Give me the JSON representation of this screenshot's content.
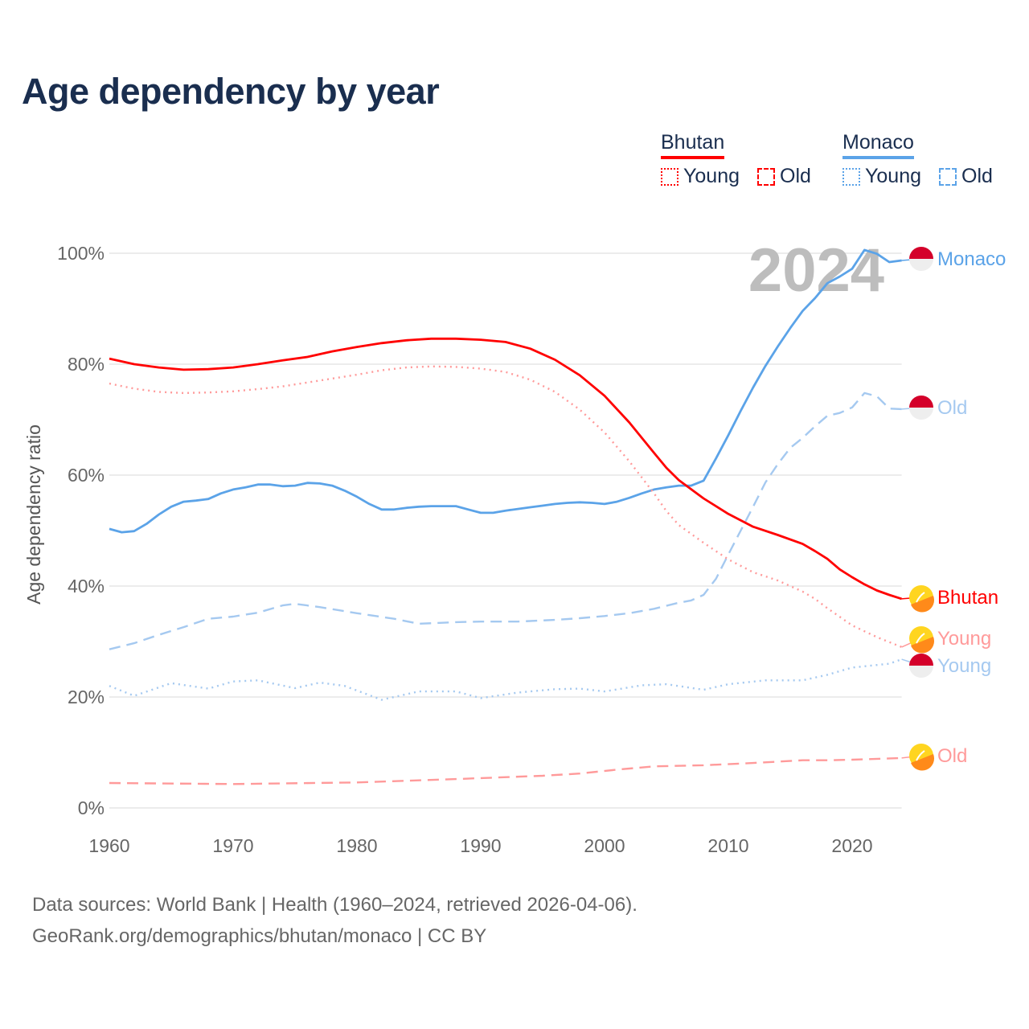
{
  "title": "Age dependency by year",
  "legend": {
    "countries": [
      {
        "name": "Bhutan",
        "color": "#ff0000",
        "light": "#ff9a9a",
        "young": "Young",
        "old": "Old"
      },
      {
        "name": "Monaco",
        "color": "#5ba3e8",
        "light": "#a5c9f0",
        "young": "Young",
        "old": "Old"
      }
    ]
  },
  "year_watermark": "2024",
  "footer": {
    "line1": "Data sources: World Bank | Health (1960–2024, retrieved 2026-04-06).",
    "line2": "GeoRank.org/demographics/bhutan/monaco | CC BY"
  },
  "chart_data": {
    "type": "line",
    "title": "Age dependency by year",
    "xlabel": "",
    "ylabel": "Age dependency ratio",
    "xlim": [
      1960,
      2024
    ],
    "ylim": [
      0,
      100
    ],
    "xticks": [
      "1960",
      "1970",
      "1980",
      "1990",
      "2000",
      "2010",
      "2020"
    ],
    "yticks": [
      "0%",
      "20%",
      "40%",
      "60%",
      "80%",
      "100%"
    ],
    "grid": true,
    "series": [
      {
        "name": "Monaco",
        "country": "Monaco",
        "kind": "total",
        "end_label": "Monaco",
        "points": [
          [
            1960,
            50.3
          ],
          [
            1961,
            49.7
          ],
          [
            1962,
            49.9
          ],
          [
            1963,
            51.2
          ],
          [
            1964,
            52.9
          ],
          [
            1965,
            54.3
          ],
          [
            1966,
            55.2
          ],
          [
            1967,
            55.4
          ],
          [
            1968,
            55.7
          ],
          [
            1969,
            56.7
          ],
          [
            1970,
            57.4
          ],
          [
            1971,
            57.8
          ],
          [
            1972,
            58.3
          ],
          [
            1973,
            58.3
          ],
          [
            1974,
            58.0
          ],
          [
            1975,
            58.1
          ],
          [
            1976,
            58.6
          ],
          [
            1977,
            58.5
          ],
          [
            1978,
            58.1
          ],
          [
            1979,
            57.2
          ],
          [
            1980,
            56.1
          ],
          [
            1981,
            54.8
          ],
          [
            1982,
            53.8
          ],
          [
            1983,
            53.8
          ],
          [
            1984,
            54.1
          ],
          [
            1985,
            54.3
          ],
          [
            1986,
            54.4
          ],
          [
            1987,
            54.4
          ],
          [
            1988,
            54.4
          ],
          [
            1989,
            53.8
          ],
          [
            1990,
            53.2
          ],
          [
            1991,
            53.2
          ],
          [
            1992,
            53.6
          ],
          [
            1993,
            53.9
          ],
          [
            1994,
            54.2
          ],
          [
            1995,
            54.5
          ],
          [
            1996,
            54.8
          ],
          [
            1997,
            55.0
          ],
          [
            1998,
            55.1
          ],
          [
            1999,
            55.0
          ],
          [
            2000,
            54.8
          ],
          [
            2001,
            55.2
          ],
          [
            2002,
            55.9
          ],
          [
            2003,
            56.7
          ],
          [
            2004,
            57.4
          ],
          [
            2005,
            57.8
          ],
          [
            2006,
            58.1
          ],
          [
            2007,
            58.1
          ],
          [
            2008,
            59.0
          ],
          [
            2009,
            63.0
          ],
          [
            2010,
            67.2
          ],
          [
            2011,
            71.6
          ],
          [
            2012,
            75.8
          ],
          [
            2013,
            79.7
          ],
          [
            2014,
            83.2
          ],
          [
            2015,
            86.5
          ],
          [
            2016,
            89.6
          ],
          [
            2017,
            91.9
          ],
          [
            2018,
            94.6
          ],
          [
            2019,
            95.8
          ],
          [
            2020,
            97.2
          ],
          [
            2021,
            100.6
          ],
          [
            2022,
            99.9
          ],
          [
            2023,
            98.4
          ],
          [
            2024,
            98.7
          ]
        ]
      },
      {
        "name": "Monaco Old",
        "country": "Monaco",
        "kind": "old",
        "end_label": "Old",
        "points": [
          [
            1960,
            28.6
          ],
          [
            1962,
            29.7
          ],
          [
            1964,
            31.2
          ],
          [
            1966,
            32.6
          ],
          [
            1968,
            34.1
          ],
          [
            1970,
            34.5
          ],
          [
            1972,
            35.2
          ],
          [
            1974,
            36.5
          ],
          [
            1975,
            36.8
          ],
          [
            1977,
            36.2
          ],
          [
            1980,
            35.1
          ],
          [
            1983,
            34.1
          ],
          [
            1985,
            33.2
          ],
          [
            1988,
            33.5
          ],
          [
            1990,
            33.6
          ],
          [
            1993,
            33.6
          ],
          [
            1996,
            33.9
          ],
          [
            1998,
            34.2
          ],
          [
            2000,
            34.6
          ],
          [
            2002,
            35.1
          ],
          [
            2004,
            35.9
          ],
          [
            2006,
            37.0
          ],
          [
            2007,
            37.4
          ],
          [
            2008,
            38.4
          ],
          [
            2009,
            41.3
          ],
          [
            2010,
            45.7
          ],
          [
            2011,
            50.0
          ],
          [
            2012,
            54.3
          ],
          [
            2013,
            58.7
          ],
          [
            2014,
            62.0
          ],
          [
            2015,
            64.9
          ],
          [
            2016,
            66.7
          ],
          [
            2017,
            68.8
          ],
          [
            2018,
            70.7
          ],
          [
            2019,
            71.2
          ],
          [
            2020,
            72.2
          ],
          [
            2021,
            74.8
          ],
          [
            2022,
            74.2
          ],
          [
            2023,
            72.0
          ],
          [
            2024,
            71.9
          ]
        ]
      },
      {
        "name": "Monaco Young",
        "country": "Monaco",
        "kind": "young",
        "end_label": "Young",
        "points": [
          [
            1960,
            22.0
          ],
          [
            1962,
            20.2
          ],
          [
            1965,
            22.5
          ],
          [
            1968,
            21.5
          ],
          [
            1970,
            22.8
          ],
          [
            1972,
            23.0
          ],
          [
            1975,
            21.6
          ],
          [
            1977,
            22.6
          ],
          [
            1979,
            22.0
          ],
          [
            1982,
            19.5
          ],
          [
            1985,
            21.0
          ],
          [
            1988,
            21.0
          ],
          [
            1990,
            19.8
          ],
          [
            1993,
            20.8
          ],
          [
            1996,
            21.4
          ],
          [
            1998,
            21.5
          ],
          [
            2000,
            21.0
          ],
          [
            2003,
            22.1
          ],
          [
            2005,
            22.3
          ],
          [
            2008,
            21.3
          ],
          [
            2010,
            22.3
          ],
          [
            2013,
            23.0
          ],
          [
            2016,
            23.0
          ],
          [
            2018,
            24.0
          ],
          [
            2020,
            25.3
          ],
          [
            2023,
            26.0
          ],
          [
            2024,
            26.8
          ]
        ]
      },
      {
        "name": "Bhutan",
        "country": "Bhutan",
        "kind": "total",
        "end_label": "Bhutan",
        "points": [
          [
            1960,
            81.0
          ],
          [
            1962,
            80.0
          ],
          [
            1964,
            79.4
          ],
          [
            1966,
            79.0
          ],
          [
            1968,
            79.1
          ],
          [
            1970,
            79.4
          ],
          [
            1972,
            80.0
          ],
          [
            1974,
            80.7
          ],
          [
            1976,
            81.3
          ],
          [
            1978,
            82.3
          ],
          [
            1980,
            83.1
          ],
          [
            1982,
            83.8
          ],
          [
            1984,
            84.3
          ],
          [
            1986,
            84.6
          ],
          [
            1988,
            84.6
          ],
          [
            1990,
            84.4
          ],
          [
            1992,
            84.0
          ],
          [
            1994,
            82.8
          ],
          [
            1996,
            80.8
          ],
          [
            1998,
            78.0
          ],
          [
            2000,
            74.3
          ],
          [
            2002,
            69.5
          ],
          [
            2004,
            64.0
          ],
          [
            2005,
            61.3
          ],
          [
            2006,
            59.1
          ],
          [
            2008,
            55.8
          ],
          [
            2010,
            53.0
          ],
          [
            2012,
            50.7
          ],
          [
            2014,
            49.2
          ],
          [
            2016,
            47.6
          ],
          [
            2017,
            46.3
          ],
          [
            2018,
            44.9
          ],
          [
            2019,
            43.0
          ],
          [
            2020,
            41.6
          ],
          [
            2021,
            40.3
          ],
          [
            2022,
            39.2
          ],
          [
            2023,
            38.4
          ],
          [
            2024,
            37.7
          ]
        ]
      },
      {
        "name": "Bhutan Young",
        "country": "Bhutan",
        "kind": "young",
        "end_label": "Young",
        "points": [
          [
            1960,
            76.5
          ],
          [
            1962,
            75.6
          ],
          [
            1964,
            75.0
          ],
          [
            1966,
            74.8
          ],
          [
            1968,
            74.9
          ],
          [
            1970,
            75.1
          ],
          [
            1972,
            75.5
          ],
          [
            1974,
            76.0
          ],
          [
            1976,
            76.7
          ],
          [
            1978,
            77.4
          ],
          [
            1980,
            78.1
          ],
          [
            1982,
            78.9
          ],
          [
            1984,
            79.4
          ],
          [
            1986,
            79.6
          ],
          [
            1988,
            79.5
          ],
          [
            1990,
            79.2
          ],
          [
            1992,
            78.6
          ],
          [
            1994,
            77.2
          ],
          [
            1996,
            75.0
          ],
          [
            1998,
            71.8
          ],
          [
            2000,
            67.7
          ],
          [
            2002,
            62.5
          ],
          [
            2004,
            56.7
          ],
          [
            2005,
            53.5
          ],
          [
            2006,
            51.0
          ],
          [
            2008,
            47.8
          ],
          [
            2010,
            44.8
          ],
          [
            2012,
            42.5
          ],
          [
            2014,
            41.0
          ],
          [
            2016,
            39.0
          ],
          [
            2017,
            37.7
          ],
          [
            2018,
            36.0
          ],
          [
            2020,
            32.9
          ],
          [
            2022,
            30.8
          ],
          [
            2024,
            29.0
          ]
        ]
      },
      {
        "name": "Bhutan Old",
        "country": "Bhutan",
        "kind": "old",
        "end_label": "Old",
        "points": [
          [
            1960,
            4.5
          ],
          [
            1970,
            4.3
          ],
          [
            1980,
            4.6
          ],
          [
            1988,
            5.2
          ],
          [
            1995,
            5.8
          ],
          [
            1998,
            6.2
          ],
          [
            2001,
            6.9
          ],
          [
            2004,
            7.5
          ],
          [
            2008,
            7.7
          ],
          [
            2012,
            8.1
          ],
          [
            2016,
            8.6
          ],
          [
            2018,
            8.6
          ],
          [
            2020,
            8.7
          ],
          [
            2024,
            9.0
          ]
        ]
      }
    ]
  }
}
